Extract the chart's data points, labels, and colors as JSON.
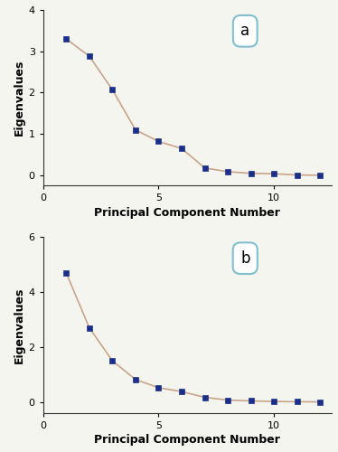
{
  "panel_a": {
    "x": [
      1,
      2,
      3,
      4,
      5,
      6,
      7,
      8,
      9,
      10,
      11,
      12
    ],
    "y": [
      3.3,
      2.88,
      2.07,
      1.1,
      0.82,
      0.65,
      0.18,
      0.09,
      0.05,
      0.04,
      0.01,
      0.005
    ],
    "label": "a",
    "ylabel": "Eigenvalues",
    "xlabel": "Principal Component Number",
    "ylim": [
      -0.25,
      4.0
    ],
    "xlim": [
      0,
      12.5
    ],
    "yticks": [
      0,
      1,
      2,
      3,
      4
    ],
    "xticks": [
      0,
      5,
      10
    ]
  },
  "panel_b": {
    "x": [
      1,
      2,
      3,
      4,
      5,
      6,
      7,
      8,
      9,
      10,
      11,
      12
    ],
    "y": [
      4.7,
      2.7,
      1.5,
      0.82,
      0.52,
      0.38,
      0.17,
      0.07,
      0.04,
      0.02,
      0.01,
      0.005
    ],
    "label": "b",
    "ylabel": "Eigenvalues",
    "xlabel": "Principal Component Number",
    "ylim": [
      -0.4,
      6.0
    ],
    "xlim": [
      0,
      12.5
    ],
    "yticks": [
      0,
      2,
      4,
      6
    ],
    "xticks": [
      0,
      5,
      10
    ]
  },
  "line_color": "#c8a48a",
  "marker_color": "#1a2f8a",
  "marker": "s",
  "marker_size": 4,
  "line_width": 1.2,
  "box_edge_color": "#7fbfcf",
  "label_fontsize": 12,
  "axis_label_fontsize": 9,
  "tick_fontsize": 8,
  "fig_bg": "#f5f5f0"
}
